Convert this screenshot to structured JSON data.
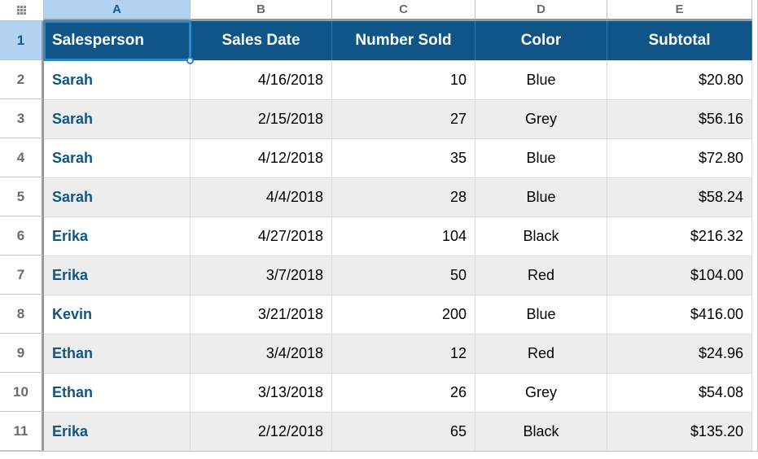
{
  "columns": {
    "labels": [
      "A",
      "B",
      "C",
      "D",
      "E"
    ],
    "selected_index": 0
  },
  "rows": {
    "labels": [
      "1",
      "2",
      "3",
      "4",
      "5",
      "6",
      "7",
      "8",
      "9",
      "10",
      "11"
    ],
    "selected_index": 0
  },
  "header_row": {
    "cells": [
      "Salesperson",
      "Sales Date",
      "Number Sold",
      "Color",
      "Subtotal"
    ],
    "bg_color": "#0f5587",
    "text_color": "#ffffff",
    "fontweight": "bold"
  },
  "data": {
    "salesperson_color": "#0f5587",
    "alt_row_bg": "#ededed",
    "rows": [
      {
        "salesperson": "Sarah",
        "date": "4/16/2018",
        "sold": "10",
        "color": "Blue",
        "subtotal": "$20.80",
        "alt": false
      },
      {
        "salesperson": "Sarah",
        "date": "2/15/2018",
        "sold": "27",
        "color": "Grey",
        "subtotal": "$56.16",
        "alt": true
      },
      {
        "salesperson": "Sarah",
        "date": "4/12/2018",
        "sold": "35",
        "color": "Blue",
        "subtotal": "$72.80",
        "alt": false
      },
      {
        "salesperson": "Sarah",
        "date": "4/4/2018",
        "sold": "28",
        "color": "Blue",
        "subtotal": "$58.24",
        "alt": true
      },
      {
        "salesperson": "Erika",
        "date": "4/27/2018",
        "sold": "104",
        "color": "Black",
        "subtotal": "$216.32",
        "alt": false
      },
      {
        "salesperson": "Erika",
        "date": "3/7/2018",
        "sold": "50",
        "color": "Red",
        "subtotal": "$104.00",
        "alt": true
      },
      {
        "salesperson": "Kevin",
        "date": "3/21/2018",
        "sold": "200",
        "color": "Blue",
        "subtotal": "$416.00",
        "alt": false
      },
      {
        "salesperson": "Ethan",
        "date": "3/4/2018",
        "sold": "12",
        "color": "Red",
        "subtotal": "$24.96",
        "alt": true
      },
      {
        "salesperson": "Ethan",
        "date": "3/13/2018",
        "sold": "26",
        "color": "Grey",
        "subtotal": "$54.08",
        "alt": false
      },
      {
        "salesperson": "Erika",
        "date": "2/12/2018",
        "sold": "65",
        "color": "Black",
        "subtotal": "$135.20",
        "alt": true
      }
    ]
  },
  "selection": {
    "cell": "A1"
  },
  "colors": {
    "selected_header_bg": "#b4d3f3",
    "selected_header_text": "#1b5691",
    "selection_outline": "#2f86c6",
    "grid_border": "#c0c0c0",
    "cell_border": "#dcdcdc"
  }
}
